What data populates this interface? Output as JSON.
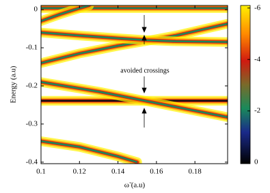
{
  "chart_data": {
    "type": "line",
    "xlabel": "ω̃ (a.u)",
    "ylabel": "Energy (a.u)",
    "annotation": "avoided crossings",
    "xlim": [
      0.1,
      0.197
    ],
    "ylim": [
      -0.404,
      0.011
    ],
    "xticks": [
      0.1,
      0.12,
      0.14,
      0.16,
      0.18
    ],
    "yticks": [
      0,
      -0.1,
      -0.2,
      -0.3,
      -0.4
    ],
    "colorbar": {
      "lim": [
        0.05,
        -6.1
      ],
      "ticks": [
        0,
        -2,
        -4,
        -6
      ]
    },
    "series": [
      {
        "color": "#1a8a5a",
        "x": [
          0.1,
          0.197
        ],
        "values": [
          0.004,
          0.004
        ]
      },
      {
        "color": "#1a8a5a",
        "x": [
          0.1,
          0.11,
          0.12,
          0.125
        ],
        "values": [
          -0.03,
          -0.012,
          0.004,
          0.011
        ]
      },
      {
        "color": "#1a8a5a",
        "x": [
          0.1,
          0.12,
          0.14,
          0.155,
          0.17,
          0.197
        ],
        "values": [
          -0.14,
          -0.115,
          -0.095,
          -0.082,
          -0.068,
          -0.037
        ]
      },
      {
        "color": "#1a8a5a",
        "x": [
          0.1,
          0.12,
          0.14,
          0.155,
          0.17,
          0.197
        ],
        "values": [
          -0.06,
          -0.068,
          -0.075,
          -0.08,
          -0.083,
          -0.085
        ]
      },
      {
        "color": "#111111",
        "x": [
          0.1,
          0.197
        ],
        "values": [
          -0.239,
          -0.239
        ]
      },
      {
        "color": "#1a8a5a",
        "x": [
          0.1,
          0.13,
          0.155,
          0.18,
          0.197
        ],
        "values": [
          -0.19,
          -0.215,
          -0.24,
          -0.265,
          -0.282
        ]
      },
      {
        "color": "#1a8a5a",
        "x": [
          0.1,
          0.12,
          0.14,
          0.15
        ],
        "values": [
          -0.345,
          -0.36,
          -0.385,
          -0.4
        ]
      }
    ]
  }
}
